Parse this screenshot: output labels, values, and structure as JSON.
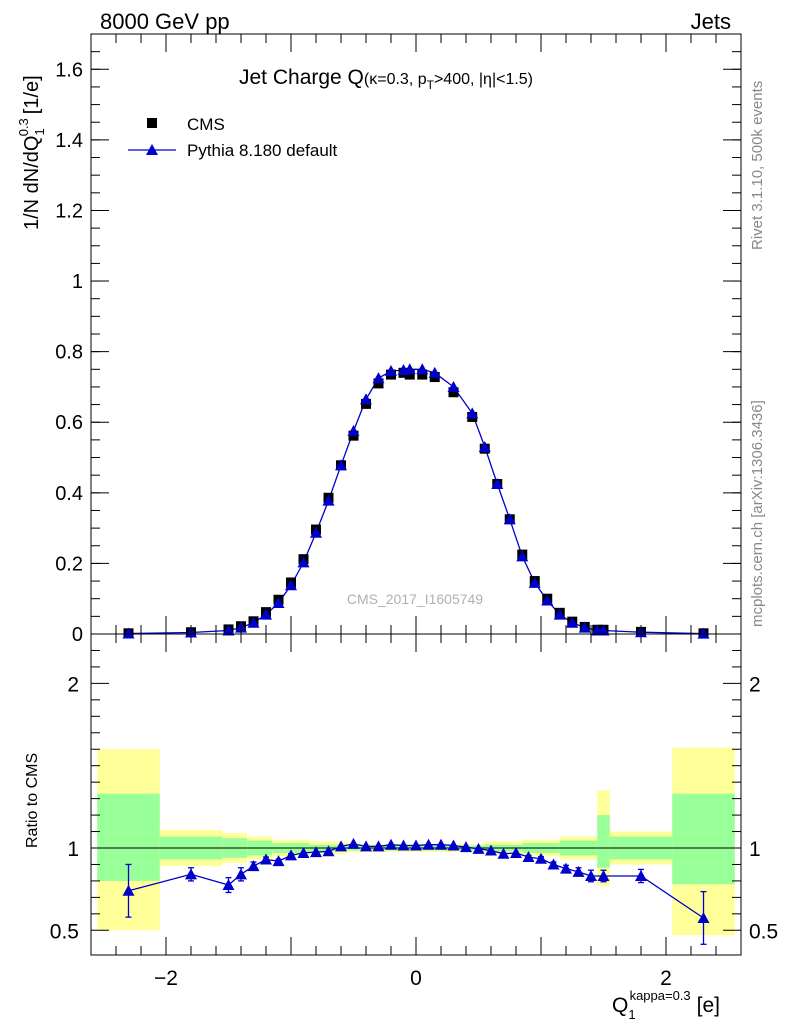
{
  "header": {
    "left": "8000 GeV pp",
    "right": "Jets"
  },
  "side_labels": {
    "top": "Rivet 3.1.10,  500k events",
    "bottom": "mcplots.cern.ch [arXiv:1306.3436]"
  },
  "watermark": "CMS_2017_I1605749",
  "colors": {
    "data": "#000000",
    "mc": "#0000cc",
    "band_outer": "#ffff99",
    "band_inner": "#99ff99"
  },
  "chart_data": [
    {
      "type": "scatter",
      "title": "Jet Charge Q",
      "title_sub": "(κ=0.3, p",
      "title_sub_index": "T",
      "title_sub_rest": ">400, |η|<1.5)",
      "ylabel": "1/N dN/dQ",
      "ylabel_sub": "1",
      "ylabel_sup": "0.3",
      "ylabel_unit": "[1/e]",
      "xlim": [
        -2.6,
        2.6
      ],
      "ylim": [
        0,
        1.7
      ],
      "yticks": [
        "0",
        "0.2",
        "0.4",
        "0.6",
        "0.8",
        "1",
        "1.2",
        "1.4",
        "1.6"
      ],
      "legend": [
        {
          "name": "CMS",
          "marker": "square"
        },
        {
          "name": "Pythia 8.180 default",
          "marker": "triangle"
        }
      ],
      "series": [
        {
          "name": "CMS",
          "x": [
            -2.3,
            -1.8,
            -1.5,
            -1.4,
            -1.3,
            -1.2,
            -1.1,
            -1.0,
            -0.9,
            -0.8,
            -0.7,
            -0.6,
            -0.5,
            -0.4,
            -0.3,
            -0.2,
            -0.1,
            -0.05,
            0.05,
            0.15,
            0.3,
            0.45,
            0.55,
            0.65,
            0.75,
            0.85,
            0.95,
            1.05,
            1.15,
            1.25,
            1.35,
            1.45,
            1.5,
            1.8,
            2.3
          ],
          "y": [
            0.002,
            0.005,
            0.013,
            0.022,
            0.036,
            0.062,
            0.097,
            0.146,
            0.212,
            0.296,
            0.386,
            0.478,
            0.562,
            0.652,
            0.71,
            0.735,
            0.74,
            0.735,
            0.735,
            0.728,
            0.685,
            0.615,
            0.525,
            0.425,
            0.325,
            0.225,
            0.15,
            0.1,
            0.06,
            0.035,
            0.02,
            0.012,
            0.012,
            0.006,
            0.002
          ]
        },
        {
          "name": "Pythia 8.180 default",
          "x": [
            -2.3,
            -1.8,
            -1.5,
            -1.4,
            -1.3,
            -1.2,
            -1.1,
            -1.0,
            -0.9,
            -0.8,
            -0.7,
            -0.6,
            -0.5,
            -0.4,
            -0.3,
            -0.2,
            -0.1,
            -0.05,
            0.05,
            0.15,
            0.3,
            0.45,
            0.55,
            0.65,
            0.75,
            0.85,
            0.95,
            1.05,
            1.15,
            1.25,
            1.35,
            1.45,
            1.5,
            1.8,
            2.3
          ],
          "y": [
            0.0015,
            0.0042,
            0.01,
            0.018,
            0.032,
            0.055,
            0.088,
            0.138,
            0.203,
            0.287,
            0.378,
            0.478,
            0.575,
            0.665,
            0.725,
            0.745,
            0.748,
            0.75,
            0.75,
            0.74,
            0.7,
            0.625,
            0.53,
            0.425,
            0.325,
            0.22,
            0.145,
            0.095,
            0.055,
            0.032,
            0.018,
            0.01,
            0.01,
            0.005,
            0.0012
          ]
        }
      ]
    },
    {
      "type": "scatter",
      "ylabel": "Ratio to CMS",
      "xlabel": "Q",
      "xlabel_sub": "1",
      "xlabel_sup": "kappa=0.3",
      "xlabel_unit": "[e]",
      "xlim": [
        -2.6,
        2.6
      ],
      "ylim": [
        0.35,
        2.3
      ],
      "xticks": [
        "−2",
        "0",
        "2"
      ],
      "yticks": [
        "0.5",
        "1",
        "2"
      ],
      "reference_line": 1,
      "bands": [
        {
          "x0": -2.55,
          "x1": -2.05,
          "outer": [
            0.5,
            1.6
          ],
          "inner": [
            0.8,
            1.33
          ]
        },
        {
          "x0": -2.05,
          "x1": -1.55,
          "outer": [
            0.89,
            1.11
          ],
          "inner": [
            0.93,
            1.07
          ]
        },
        {
          "x0": -1.55,
          "x1": -1.35,
          "outer": [
            0.91,
            1.09
          ],
          "inner": [
            0.94,
            1.06
          ]
        },
        {
          "x0": -1.35,
          "x1": -1.15,
          "outer": [
            0.93,
            1.07
          ],
          "inner": [
            0.955,
            1.045
          ]
        },
        {
          "x0": -1.15,
          "x1": -0.85,
          "outer": [
            0.95,
            1.05
          ],
          "inner": [
            0.97,
            1.03
          ]
        },
        {
          "x0": -0.85,
          "x1": -0.55,
          "outer": [
            0.96,
            1.04
          ],
          "inner": [
            0.98,
            1.02
          ]
        },
        {
          "x0": -0.55,
          "x1": 0.55,
          "outer": [
            0.975,
            1.025
          ],
          "inner": [
            0.985,
            1.015
          ]
        },
        {
          "x0": 0.55,
          "x1": 0.85,
          "outer": [
            0.96,
            1.04
          ],
          "inner": [
            0.98,
            1.02
          ]
        },
        {
          "x0": 0.85,
          "x1": 1.15,
          "outer": [
            0.95,
            1.05
          ],
          "inner": [
            0.97,
            1.03
          ]
        },
        {
          "x0": 1.15,
          "x1": 1.45,
          "outer": [
            0.93,
            1.07
          ],
          "inner": [
            0.955,
            1.045
          ]
        },
        {
          "x0": 1.45,
          "x1": 1.55,
          "outer": [
            0.77,
            1.35
          ],
          "inner": [
            0.88,
            1.2
          ]
        },
        {
          "x0": 1.55,
          "x1": 2.05,
          "outer": [
            0.9,
            1.1
          ],
          "inner": [
            0.93,
            1.07
          ]
        },
        {
          "x0": 2.05,
          "x1": 2.55,
          "outer": [
            0.47,
            1.61
          ],
          "inner": [
            0.78,
            1.33
          ]
        }
      ],
      "series": [
        {
          "name": "Pythia 8.180 default",
          "x": [
            -2.3,
            -1.8,
            -1.5,
            -1.4,
            -1.3,
            -1.2,
            -1.1,
            -1.0,
            -0.9,
            -0.8,
            -0.7,
            -0.6,
            -0.5,
            -0.4,
            -0.3,
            -0.2,
            -0.1,
            0.0,
            0.1,
            0.2,
            0.3,
            0.4,
            0.5,
            0.6,
            0.7,
            0.8,
            0.9,
            1.0,
            1.1,
            1.2,
            1.3,
            1.4,
            1.5,
            1.8,
            2.3
          ],
          "y": [
            0.74,
            0.84,
            0.775,
            0.84,
            0.89,
            0.93,
            0.92,
            0.955,
            0.97,
            0.975,
            0.98,
            1.01,
            1.025,
            1.01,
            1.01,
            1.02,
            1.015,
            1.015,
            1.02,
            1.02,
            1.015,
            1.005,
            0.995,
            0.985,
            0.965,
            0.97,
            0.945,
            0.935,
            0.9,
            0.875,
            0.855,
            0.83,
            0.83,
            0.83,
            0.575
          ],
          "yerr": [
            0.16,
            0.04,
            0.045,
            0.04,
            0.025,
            0.015,
            0.012,
            0.01,
            0.008,
            0.006,
            0.005,
            0.005,
            0.005,
            0.005,
            0.005,
            0.005,
            0.005,
            0.005,
            0.005,
            0.005,
            0.005,
            0.005,
            0.005,
            0.005,
            0.006,
            0.008,
            0.01,
            0.012,
            0.015,
            0.02,
            0.025,
            0.035,
            0.035,
            0.04,
            0.16
          ]
        }
      ]
    }
  ]
}
